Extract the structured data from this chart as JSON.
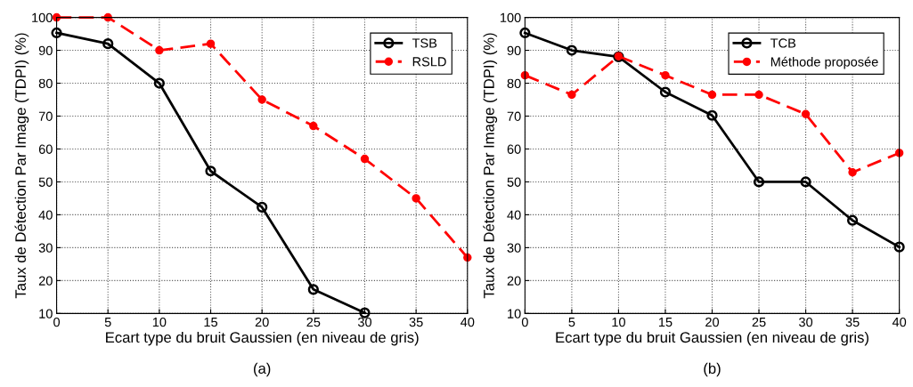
{
  "chart_data": [
    {
      "type": "line",
      "title": "(a)",
      "xlabel": "Ecart type du bruit Gaussien (en niveau de gris)",
      "ylabel": "Taux de Détection Par Image (TDPI) (%)",
      "x": [
        0,
        5,
        10,
        15,
        20,
        25,
        30,
        35,
        40
      ],
      "series": [
        {
          "name": "TSB",
          "color": "#000000",
          "line_style": "solid",
          "marker": "circle",
          "x": [
            0,
            5,
            10,
            15,
            20,
            25,
            30
          ],
          "values": [
            95.3,
            92,
            80,
            53.3,
            42.3,
            17.3,
            10.2
          ]
        },
        {
          "name": "RSLD",
          "color": "#ff0000",
          "line_style": "dashed",
          "marker": "circle",
          "values": [
            100,
            100,
            90,
            92,
            75,
            67,
            57,
            45,
            27
          ]
        }
      ],
      "xlim": [
        0,
        40
      ],
      "xticks": [
        0,
        5,
        10,
        15,
        20,
        25,
        30,
        35,
        40
      ],
      "ylim": [
        10,
        100
      ],
      "yticks": [
        10,
        20,
        30,
        40,
        50,
        60,
        70,
        80,
        90,
        100
      ],
      "grid": true,
      "legend": "top right"
    },
    {
      "type": "line",
      "title": "(b)",
      "xlabel": "Ecart type du bruit Gaussien (en niveau de gris)",
      "ylabel": "Taux de Détection Par Image (TDPI) (%)",
      "x": [
        0,
        5,
        10,
        15,
        20,
        25,
        30,
        35,
        40
      ],
      "series": [
        {
          "name": "TCB",
          "color": "#000000",
          "line_style": "solid",
          "marker": "circle",
          "values": [
            95.3,
            90,
            88,
            77.3,
            70.2,
            50,
            50,
            38.3,
            30.2
          ]
        },
        {
          "name": "Méthode proposée",
          "color": "#ff0000",
          "line_style": "dashed",
          "marker": "circle",
          "values": [
            82.4,
            76.5,
            88.2,
            82.4,
            76.5,
            76.5,
            70.6,
            52.9,
            58.8
          ]
        }
      ],
      "xlim": [
        0,
        40
      ],
      "xticks": [
        0,
        5,
        10,
        15,
        20,
        25,
        30,
        35,
        40
      ],
      "ylim": [
        10,
        100
      ],
      "yticks": [
        10,
        20,
        30,
        40,
        50,
        60,
        70,
        80,
        90,
        100
      ],
      "grid": true,
      "legend": "top right"
    }
  ]
}
